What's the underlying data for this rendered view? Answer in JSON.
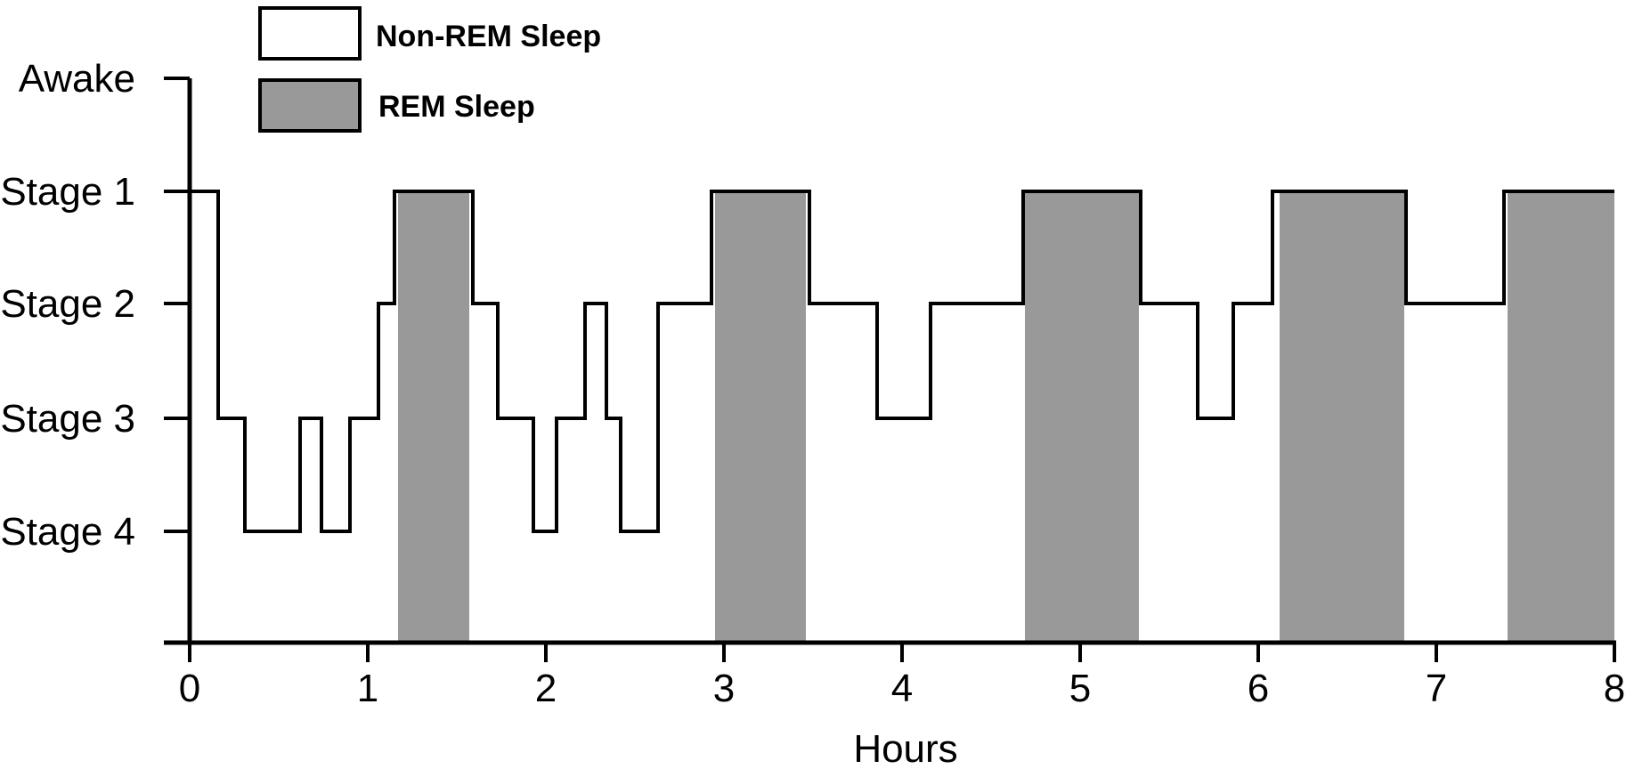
{
  "chart_data": {
    "type": "line",
    "step": true,
    "xlabel": "Hours",
    "ylabel": "",
    "xlim": [
      0,
      8
    ],
    "x_ticks": [
      0,
      1,
      2,
      3,
      4,
      5,
      6,
      7,
      8
    ],
    "y_categories": [
      "Awake",
      "Stage 1",
      "Stage 2",
      "Stage 3",
      "Stage 4"
    ],
    "legend": {
      "placement": "top-left",
      "entries": [
        {
          "label": "Non-REM Sleep",
          "fill": "#ffffff"
        },
        {
          "label": "REM Sleep",
          "fill": "#999999"
        }
      ]
    },
    "series": [
      {
        "name": "Non-REM Sleep",
        "color": "#000000",
        "steps": [
          {
            "x": 0.0,
            "stage": "Stage 1"
          },
          {
            "x": 0.16,
            "stage": "Stage 3"
          },
          {
            "x": 0.31,
            "stage": "Stage 4"
          },
          {
            "x": 0.62,
            "stage": "Stage 3"
          },
          {
            "x": 0.74,
            "stage": "Stage 4"
          },
          {
            "x": 0.9,
            "stage": "Stage 3"
          },
          {
            "x": 1.06,
            "stage": "Stage 2"
          },
          {
            "x": 1.15,
            "stage": "Stage 1"
          },
          {
            "x": 1.59,
            "stage": "Stage 2"
          },
          {
            "x": 1.73,
            "stage": "Stage 3"
          },
          {
            "x": 1.93,
            "stage": "Stage 4"
          },
          {
            "x": 2.06,
            "stage": "Stage 3"
          },
          {
            "x": 2.22,
            "stage": "Stage 2"
          },
          {
            "x": 2.34,
            "stage": "Stage 3"
          },
          {
            "x": 2.42,
            "stage": "Stage 4"
          },
          {
            "x": 2.63,
            "stage": "Stage 2"
          },
          {
            "x": 2.93,
            "stage": "Stage 1"
          },
          {
            "x": 3.48,
            "stage": "Stage 2"
          },
          {
            "x": 3.86,
            "stage": "Stage 3"
          },
          {
            "x": 4.16,
            "stage": "Stage 2"
          },
          {
            "x": 4.68,
            "stage": "Stage 1"
          },
          {
            "x": 5.34,
            "stage": "Stage 2"
          },
          {
            "x": 5.66,
            "stage": "Stage 3"
          },
          {
            "x": 5.86,
            "stage": "Stage 2"
          },
          {
            "x": 6.08,
            "stage": "Stage 1"
          },
          {
            "x": 6.83,
            "stage": "Stage 2"
          },
          {
            "x": 7.38,
            "stage": "Stage 1"
          },
          {
            "x": 8.0,
            "stage": "Stage 1"
          }
        ]
      },
      {
        "name": "REM Sleep",
        "color": "#999999",
        "periods": [
          {
            "start": 1.17,
            "end": 1.57,
            "stage": "Stage 1"
          },
          {
            "start": 2.95,
            "end": 3.46,
            "stage": "Stage 1"
          },
          {
            "start": 4.69,
            "end": 5.33,
            "stage": "Stage 1"
          },
          {
            "start": 6.12,
            "end": 6.82,
            "stage": "Stage 1"
          },
          {
            "start": 7.4,
            "end": 8.0,
            "stage": "Stage 1"
          }
        ]
      }
    ]
  }
}
